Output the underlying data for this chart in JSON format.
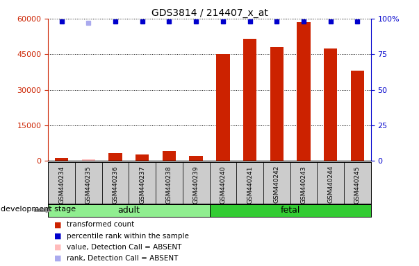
{
  "title": "GDS3814 / 214407_x_at",
  "samples": [
    "GSM440234",
    "GSM440235",
    "GSM440236",
    "GSM440237",
    "GSM440238",
    "GSM440239",
    "GSM440240",
    "GSM440241",
    "GSM440242",
    "GSM440243",
    "GSM440244",
    "GSM440245"
  ],
  "bar_values": [
    1200,
    600,
    3200,
    2800,
    4200,
    2000,
    45000,
    51500,
    48000,
    58500,
    47500,
    38000
  ],
  "absent_mask": [
    false,
    true,
    false,
    false,
    false,
    false,
    false,
    false,
    false,
    false,
    false,
    false
  ],
  "rank_absent_mask": [
    false,
    true,
    false,
    false,
    false,
    false,
    false,
    false,
    false,
    false,
    false,
    false
  ],
  "ylim_left": [
    0,
    60000
  ],
  "ylim_right": [
    0,
    100
  ],
  "yticks_left": [
    0,
    15000,
    30000,
    45000,
    60000
  ],
  "yticks_right": [
    0,
    25,
    50,
    75,
    100
  ],
  "groups": [
    {
      "label": "adult",
      "start": 0,
      "end": 5,
      "color": "#90ee90"
    },
    {
      "label": "fetal",
      "start": 6,
      "end": 11,
      "color": "#33cc33"
    }
  ],
  "group_label": "development stage",
  "left_axis_color": "#cc2200",
  "right_axis_color": "#0000cc",
  "bar_color": "#cc2200",
  "bar_color_absent": "#ffbbbb",
  "rank_color": "#0000cc",
  "rank_color_absent": "#aaaaee",
  "rank_pct": 98,
  "rank_pct_absent": 97,
  "background_color": "#ffffff",
  "xticklabel_bg": "#cccccc",
  "legend_items": [
    {
      "label": "transformed count",
      "color": "#cc2200"
    },
    {
      "label": "percentile rank within the sample",
      "color": "#0000cc"
    },
    {
      "label": "value, Detection Call = ABSENT",
      "color": "#ffbbbb"
    },
    {
      "label": "rank, Detection Call = ABSENT",
      "color": "#aaaaee"
    }
  ]
}
